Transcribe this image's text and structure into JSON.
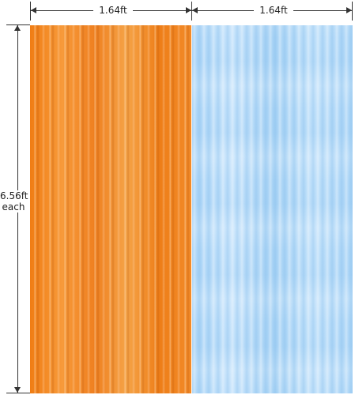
{
  "dimensions": {
    "left_width": "1.64ft",
    "right_width": "1.64ft",
    "height_value": "6.56ft",
    "height_note": "each"
  },
  "curtains": [
    {
      "name": "orange",
      "color": "#f08a28"
    },
    {
      "name": "light-blue",
      "color": "#b3d9f8"
    }
  ]
}
